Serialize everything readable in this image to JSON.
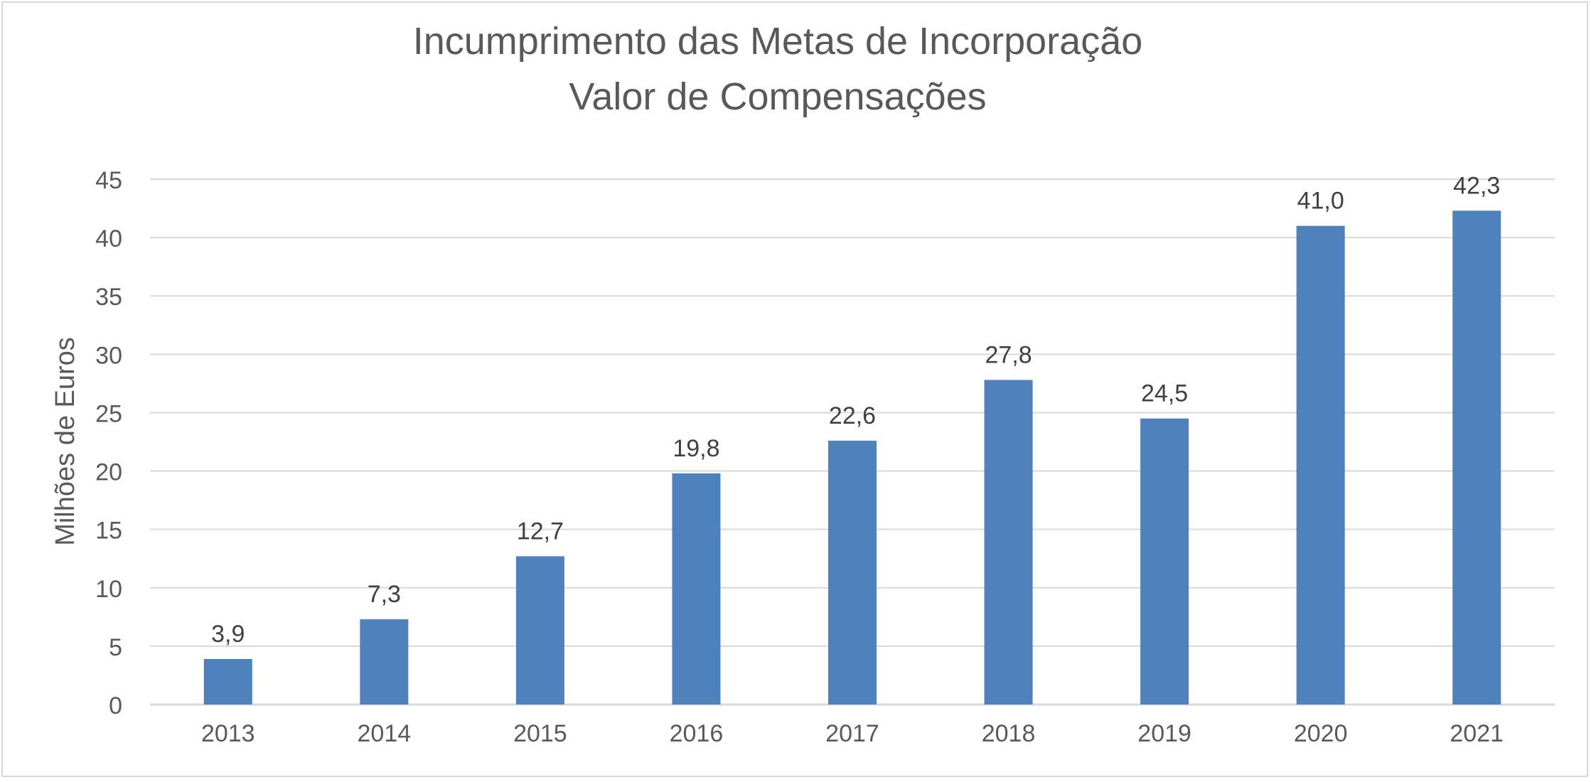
{
  "chart_data": {
    "type": "bar",
    "title": "Incumprimento das Metas de Incorporação",
    "subtitle": "Valor de Compensações",
    "ylabel": "Milhões de Euros",
    "xlabel": "",
    "categories": [
      "2013",
      "2014",
      "2015",
      "2016",
      "2017",
      "2018",
      "2019",
      "2020",
      "2021"
    ],
    "values": [
      3.9,
      7.3,
      12.7,
      19.8,
      22.6,
      27.8,
      24.5,
      41.0,
      42.3
    ],
    "data_labels": [
      "3,9",
      "7,3",
      "12,7",
      "19,8",
      "22,6",
      "27,8",
      "24,5",
      "41,0",
      "42,3"
    ],
    "yticks": [
      "0",
      "5",
      "10",
      "15",
      "20",
      "25",
      "30",
      "35",
      "40",
      "45"
    ],
    "ylim": [
      0,
      45
    ],
    "grid": true,
    "legend": "none",
    "colors": {
      "bar": "#4f81bd",
      "grid": "#d9d9d9",
      "text": "#595959",
      "data_label": "#404040",
      "border": "#d9d9d9"
    }
  }
}
